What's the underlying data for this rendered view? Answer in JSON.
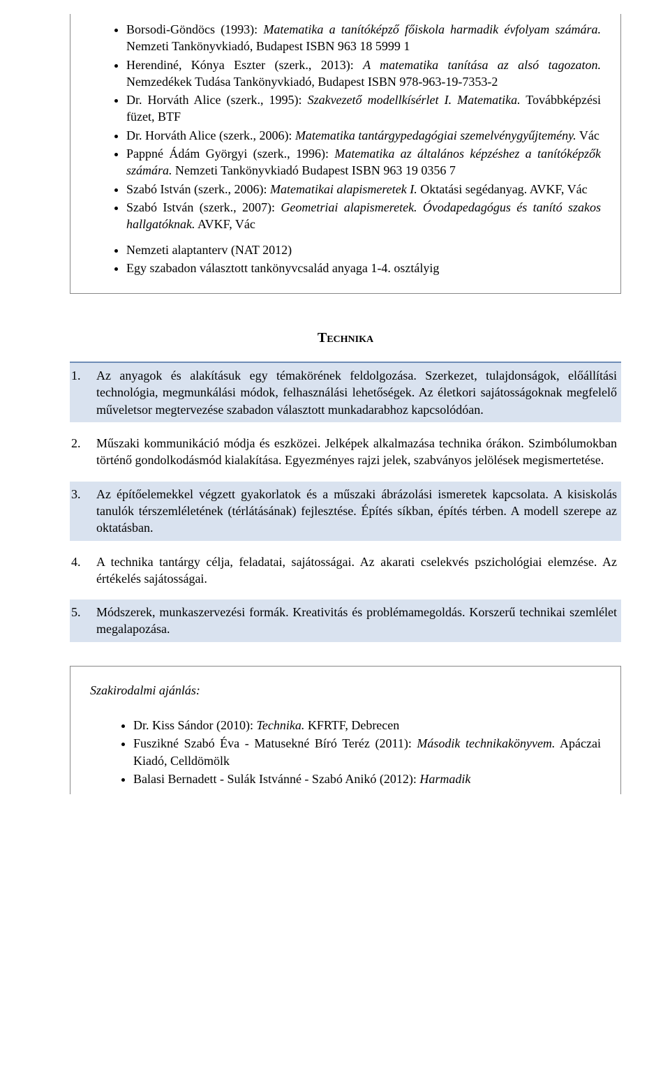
{
  "topBibliography": {
    "items": [
      {
        "pre": "Borsodi-Göndöcs (1993): ",
        "it": "Matematika a tanítóképző főiskola harmadik évfolyam számára.",
        "post": " Nemzeti Tankönyvkiadó, Budapest ISBN 963 18 5999 1"
      },
      {
        "pre": "Herendiné, Kónya Eszter (szerk., 2013): ",
        "it": "A matematika tanítása az alsó tagozaton.",
        "post": " Nemzedékek Tudása Tankönyvkiadó, Budapest ISBN 978-963-19-7353-2"
      },
      {
        "pre": "Dr. Horváth Alice (szerk., 1995): ",
        "it": "Szakvezető modellkísérlet I. Matematika.",
        "post": " Továbbképzési füzet, BTF"
      },
      {
        "pre": "Dr. Horváth Alice (szerk., 2006): ",
        "it": "Matematika tantárgypedagógiai szemelvénygyűjtemény.",
        "post": " Vác"
      },
      {
        "pre": "Pappné Ádám Györgyi (szerk., 1996): ",
        "it": "Matematika az általános képzéshez a tanítóképzők számára.",
        "post": " Nemzeti Tankönyvkiadó Budapest ISBN 963 19 0356 7"
      },
      {
        "pre": "Szabó István (szerk., 2006): ",
        "it": "Matematikai alapismeretek I.",
        "post": " Oktatási segédanyag. AVKF, Vác"
      },
      {
        "pre": "Szabó István (szerk., 2007): ",
        "it": "Geometriai alapismeretek. Óvodapedagógus és tanító szakos hallgatóknak.",
        "post": " AVKF, Vác"
      }
    ],
    "extra": [
      "Nemzeti alaptanterv (NAT 2012)",
      "Egy szabadon választott tankönyvcsalád anyaga 1-4. osztályig"
    ]
  },
  "technika": {
    "title": "Technika",
    "items": [
      "Az anyagok és alakításuk egy témakörének feldolgozása. Szerkezet, tulajdonságok, előállítási technológia, megmunkálási módok, felhasználási lehetőségek. Az életkori sajátosságoknak megfelelő műveletsor megtervezése szabadon választott munkadarabhoz kapcsolódóan.",
      "Műszaki kommunikáció módja és eszközei. Jelképek alkalmazása technika órákon. Szimbólumokban történő gondolkodásmód kialakítása. Egyezményes rajzi jelek, szabványos jelölések megismertetése.",
      "Az építőelemekkel végzett gyakorlatok és a műszaki ábrázolási ismeretek kapcsolata. A kisiskolás tanulók térszemléletének (térlátásának) fejlesztése. Építés síkban, építés térben. A modell szerepe az oktatásban.",
      "A technika tantárgy célja, feladatai, sajátosságai. Az akarati cselekvés pszichológiai elemzése. Az értékelés sajátosságai.",
      "Módszerek, munkaszervezési formák. Kreativitás és problémamegoldás. Korszerű technikai szemlélet megalapozása."
    ]
  },
  "bottomBibliography": {
    "title": "Szakirodalmi ajánlás:",
    "items": [
      {
        "pre": "Dr. Kiss Sándor (2010): ",
        "it": "Technika.",
        "post": " KFRTF, Debrecen"
      },
      {
        "pre": "Fuszikné Szabó Éva - Matusekné Bíró Teréz (2011): ",
        "it": "Második technikakönyvem.",
        "post": " Apáczai Kiadó, Celldömölk"
      },
      {
        "pre": "Balasi Bernadett - Sulák Istvánné - Szabó Anikó (2012): ",
        "it": "Harmadik",
        "post": ""
      }
    ]
  },
  "numbers": [
    "1.",
    "2.",
    "3.",
    "4.",
    "5."
  ]
}
